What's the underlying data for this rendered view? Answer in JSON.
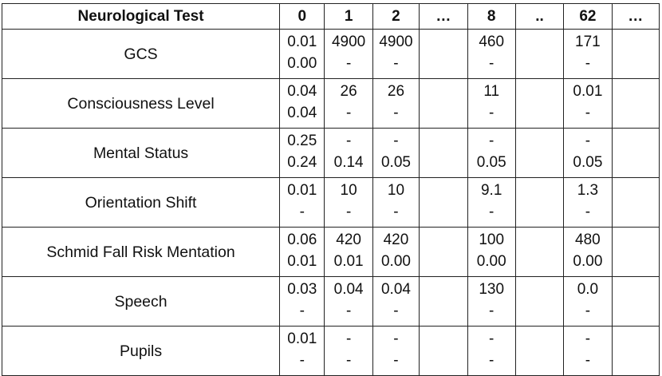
{
  "table": {
    "header": [
      "Neurological Test",
      "0",
      "1",
      "2",
      "…",
      "8",
      "..",
      "62",
      "…"
    ],
    "rows": [
      {
        "label": "GCS",
        "cells": [
          [
            "0.01",
            "0.00"
          ],
          [
            "4900",
            "-"
          ],
          [
            "4900",
            "-"
          ],
          [
            "",
            ""
          ],
          [
            "460",
            "-"
          ],
          [
            "",
            ""
          ],
          [
            "171",
            "-"
          ],
          [
            "",
            ""
          ]
        ]
      },
      {
        "label": "Consciousness Level",
        "cells": [
          [
            "0.04",
            "0.04"
          ],
          [
            "26",
            "-"
          ],
          [
            "26",
            "-"
          ],
          [
            "",
            ""
          ],
          [
            "11",
            "-"
          ],
          [
            "",
            ""
          ],
          [
            "0.01",
            "-"
          ],
          [
            "",
            ""
          ]
        ]
      },
      {
        "label": "Mental Status",
        "cells": [
          [
            "0.25",
            "0.24"
          ],
          [
            "-",
            "0.14"
          ],
          [
            "-",
            "0.05"
          ],
          [
            "",
            ""
          ],
          [
            "-",
            "0.05"
          ],
          [
            "",
            ""
          ],
          [
            "-",
            "0.05"
          ],
          [
            "",
            ""
          ]
        ]
      },
      {
        "label": "Orientation Shift",
        "cells": [
          [
            "0.01",
            "-"
          ],
          [
            "10",
            "-"
          ],
          [
            "10",
            "-"
          ],
          [
            "",
            ""
          ],
          [
            "9.1",
            "-"
          ],
          [
            "",
            ""
          ],
          [
            "1.3",
            "-"
          ],
          [
            "",
            ""
          ]
        ]
      },
      {
        "label": "Schmid Fall Risk Mentation",
        "cells": [
          [
            "0.06",
            "0.01"
          ],
          [
            "420",
            "0.01"
          ],
          [
            "420",
            "0.00"
          ],
          [
            "",
            ""
          ],
          [
            "100",
            "0.00"
          ],
          [
            "",
            ""
          ],
          [
            "480",
            "0.00"
          ],
          [
            "",
            ""
          ]
        ]
      },
      {
        "label": "Speech",
        "cells": [
          [
            "0.03",
            "-"
          ],
          [
            "0.04",
            "-"
          ],
          [
            "0.04",
            "-"
          ],
          [
            "",
            ""
          ],
          [
            "130",
            "-"
          ],
          [
            "",
            ""
          ],
          [
            "0.0",
            "-"
          ],
          [
            "",
            ""
          ]
        ]
      },
      {
        "label": "Pupils",
        "cells": [
          [
            "0.01",
            "-"
          ],
          [
            "-",
            "-"
          ],
          [
            "-",
            "-"
          ],
          [
            "",
            ""
          ],
          [
            "-",
            "-"
          ],
          [
            "",
            ""
          ],
          [
            "-",
            "-"
          ],
          [
            "",
            ""
          ]
        ]
      }
    ]
  }
}
